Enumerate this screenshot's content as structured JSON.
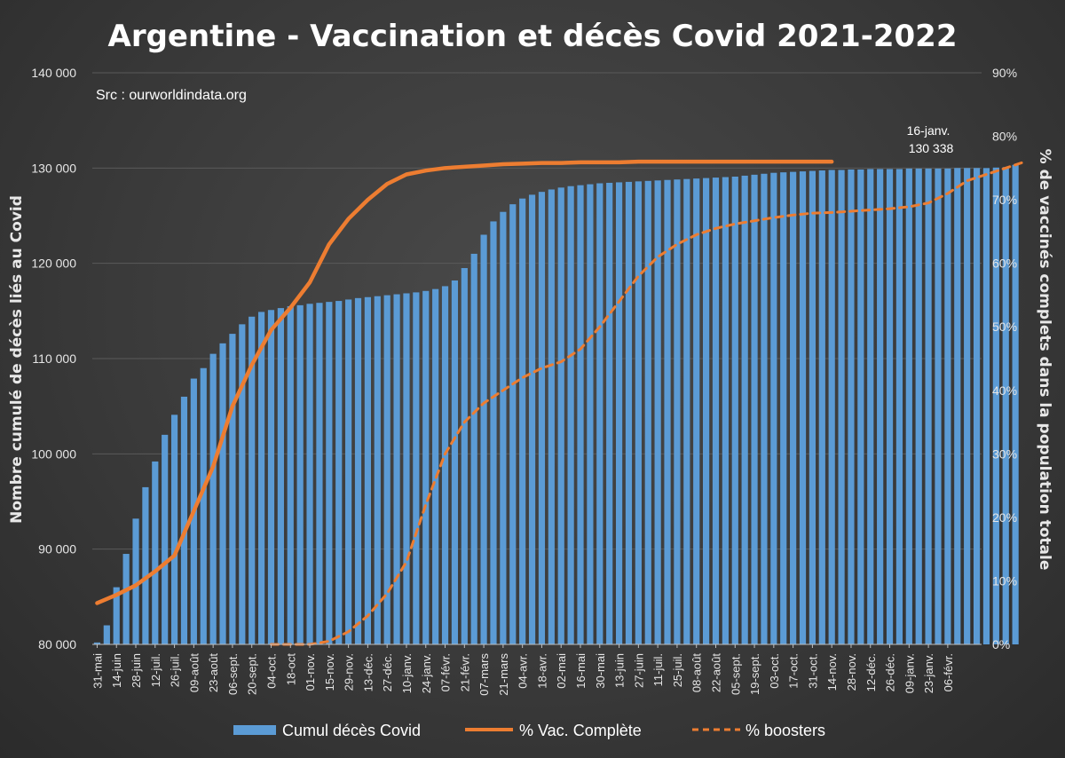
{
  "chart_data": {
    "type": "bar",
    "title": "Argentine - Vaccination et décès Covid 2021-2022",
    "subtitle": "Src : ourworldindata.org",
    "ylabel": "Nombre cumulé de décès liés au Covid",
    "y2label": "% de vaccinés complets dans  la population totale",
    "ylim": [
      80000,
      140000
    ],
    "y2lim": [
      0,
      90
    ],
    "yticks": [
      "80 000",
      "90 000",
      "100 000",
      "110 000",
      "120 000",
      "130 000",
      "140 000"
    ],
    "y2ticks": [
      "0%",
      "10%",
      "20%",
      "30%",
      "40%",
      "50%",
      "60%",
      "70%",
      "80%",
      "90%"
    ],
    "grid": true,
    "legend_position": "bottom",
    "x_labels": [
      "31-mai",
      "14-juin",
      "28-juin",
      "12-juil.",
      "26-juil.",
      "09-août",
      "23-août",
      "06-sept.",
      "20-sept.",
      "04-oct.",
      "18-oct",
      "01-nov.",
      "15-nov.",
      "29-nov.",
      "13-déc.",
      "27-déc.",
      "10-janv.",
      "24-janv.",
      "07-févr.",
      "21-févr.",
      "07-mars",
      "21-mars",
      "04-avr.",
      "18-avr.",
      "02-mai",
      "16-mai",
      "30-mai",
      "13-juin",
      "27-juin",
      "11-juil.",
      "25-juil.",
      "08-août",
      "22-août",
      "05-sept.",
      "19-sept.",
      "03-oct.",
      "17-oct.",
      "31-oct.",
      "14-nov.",
      "28-nov.",
      "12-déc.",
      "26-déc.",
      "09-janv.",
      "23-janv.",
      "06-févr."
    ],
    "series": [
      {
        "name": "Cumul décès Covid",
        "type": "bar",
        "color": "#5b9bd5",
        "values": [
          80200,
          82000,
          86000,
          89500,
          93200,
          96500,
          99200,
          102000,
          104100,
          106000,
          107900,
          109000,
          110500,
          111600,
          112600,
          113600,
          114400,
          114900,
          115100,
          115300,
          115500,
          115600,
          115750,
          115850,
          115950,
          116050,
          116200,
          116350,
          116450,
          116550,
          116650,
          116750,
          116850,
          116950,
          117100,
          117300,
          117600,
          118200,
          119500,
          121000,
          123000,
          124400,
          125400,
          126200,
          126800,
          127200,
          127500,
          127750,
          127950,
          128100,
          128200,
          128300,
          128400,
          128450,
          128500,
          128550,
          128600,
          128650,
          128700,
          128750,
          128800,
          128850,
          128900,
          128950,
          129000,
          129050,
          129100,
          129200,
          129300,
          129400,
          129500,
          129550,
          129600,
          129650,
          129700,
          129750,
          129800,
          129800,
          129850,
          129850,
          129900,
          129900,
          129900,
          129900,
          129950,
          129950,
          129950,
          129950,
          129950,
          130000,
          130000,
          130000,
          130000,
          130050,
          130100,
          130338
        ]
      },
      {
        "name": "% Vac. Complète",
        "type": "line",
        "color": "#ed7d31",
        "x": [
          0,
          2,
          4,
          6,
          8,
          10,
          12,
          14,
          16,
          18,
          20,
          22,
          24,
          26,
          28,
          30,
          32,
          34,
          36,
          38,
          40,
          42,
          44,
          46,
          48,
          50,
          52,
          54,
          56,
          58,
          60,
          62,
          64,
          66,
          68,
          70,
          72,
          74,
          76
        ],
        "values": [
          6.5,
          7.8,
          9.3,
          11.5,
          14,
          21,
          28,
          37.5,
          44,
          49.5,
          53,
          57,
          63,
          67,
          70,
          72.5,
          74,
          74.6,
          75,
          75.2,
          75.4,
          75.6,
          75.7,
          75.8,
          75.8,
          75.9,
          75.9,
          75.9,
          76,
          76,
          76,
          76,
          76,
          76,
          76,
          76,
          76,
          76,
          76
        ]
      },
      {
        "name": "% boosters",
        "type": "line",
        "style": "dashed",
        "color": "#ed7d31",
        "x": [
          18,
          20,
          22,
          24,
          26,
          28,
          30,
          32,
          34,
          36,
          38,
          40,
          42,
          44,
          46,
          48,
          50,
          52,
          54,
          56,
          58,
          60,
          62,
          64,
          66,
          68,
          70,
          72,
          74,
          76,
          78,
          80,
          82,
          84,
          86,
          88,
          90,
          92,
          94,
          96
        ],
        "values": [
          0,
          0,
          0,
          0.5,
          2,
          4.5,
          8,
          13,
          22,
          30,
          35,
          38,
          40,
          42,
          43.5,
          44.5,
          46.5,
          50,
          54,
          58,
          61,
          63,
          64.5,
          65.5,
          66.2,
          66.7,
          67.2,
          67.6,
          67.9,
          68,
          68.2,
          68.4,
          68.6,
          68.9,
          69.5,
          71,
          73,
          74,
          75,
          76
        ]
      }
    ],
    "annotation": {
      "label": "16-janv.",
      "value": "130 338"
    }
  }
}
